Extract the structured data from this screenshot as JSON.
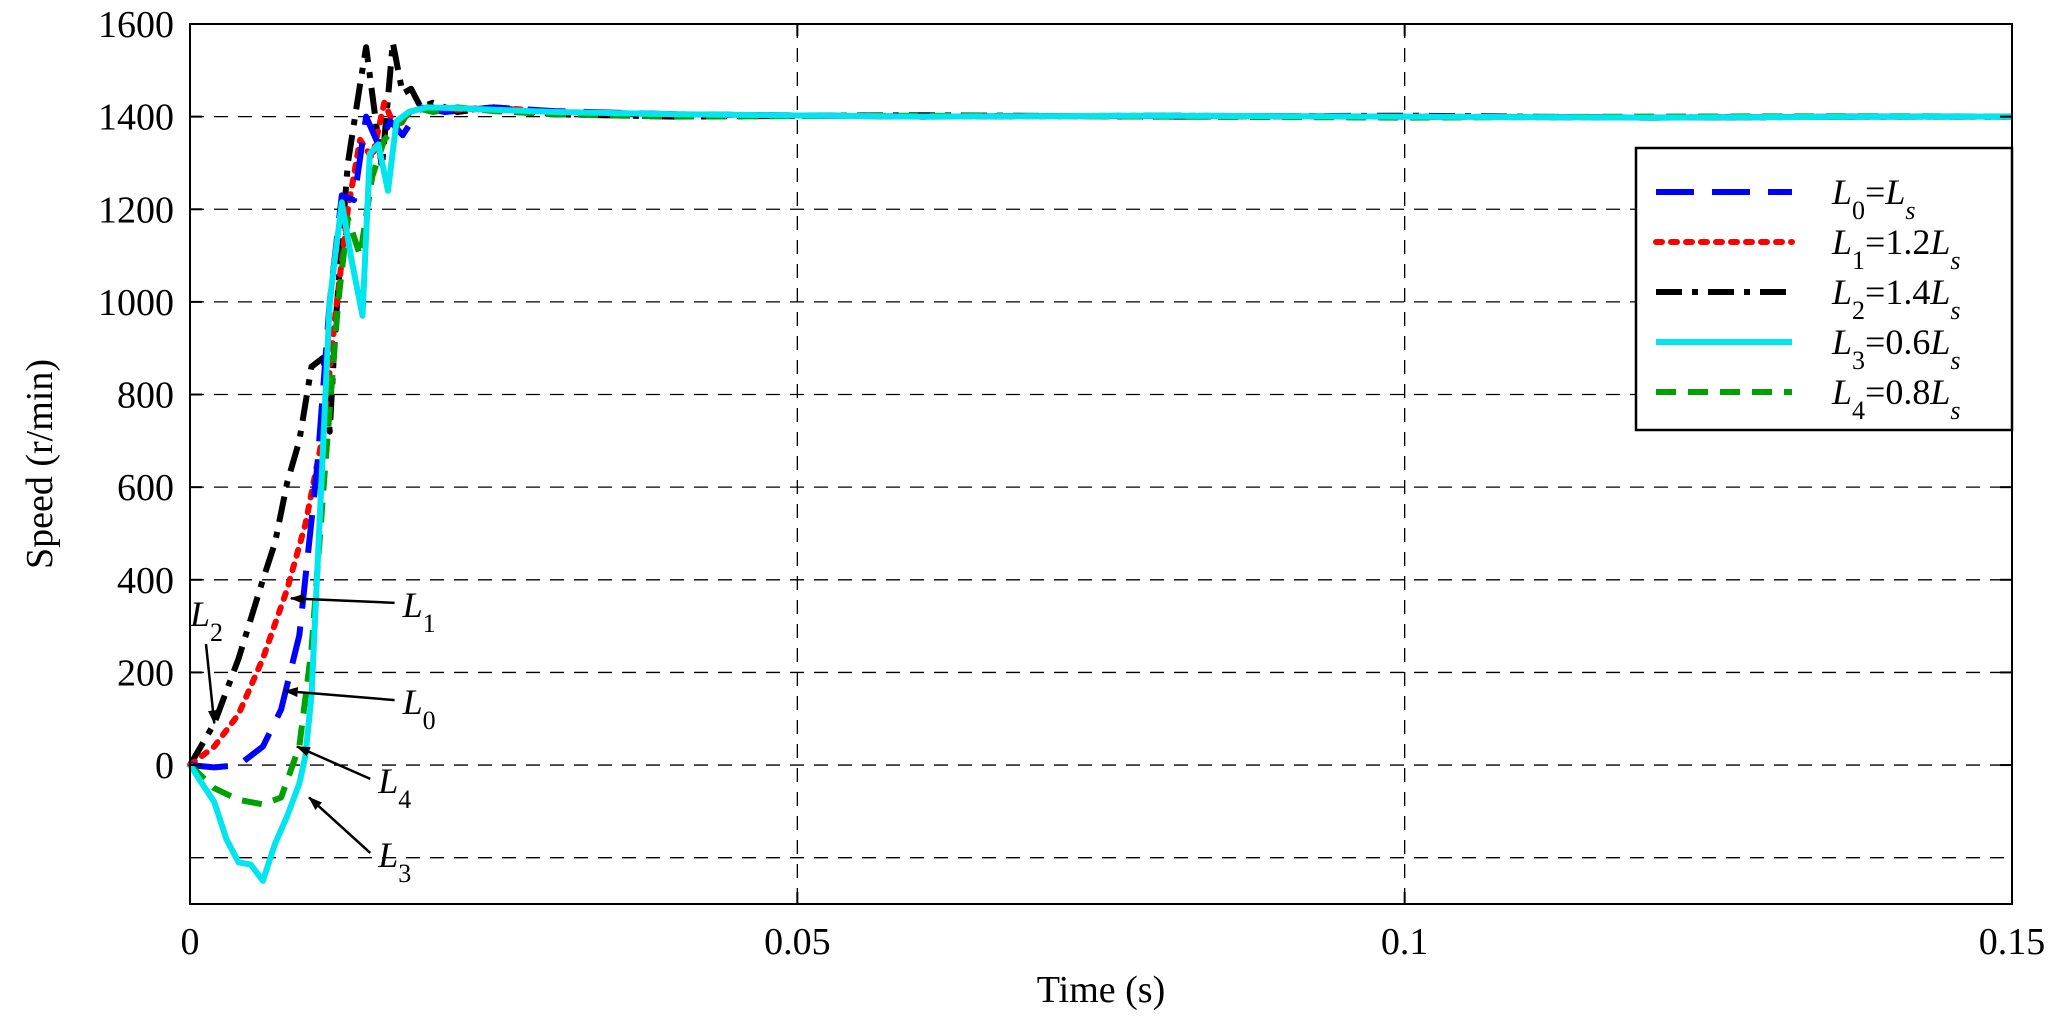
{
  "chart_data": {
    "type": "line",
    "title": "",
    "xlabel": "Time (s)",
    "ylabel": "Speed (r/min)",
    "xlim": [
      0,
      0.15
    ],
    "ylim": [
      -300,
      1600
    ],
    "xticks": [
      0,
      0.05,
      0.1,
      0.15
    ],
    "xtick_labels": [
      "0",
      "0.05",
      "0.1",
      "0.15"
    ],
    "yticks": [
      0,
      200,
      400,
      600,
      800,
      1000,
      1200,
      1400,
      1600
    ],
    "ytick_labels": [
      "0",
      "200",
      "400",
      "600",
      "800",
      "1000",
      "1200",
      "1400",
      "1600"
    ],
    "grid": true,
    "legend_position": "top-right",
    "series": [
      {
        "key": "L0",
        "legend": {
          "sym": "L",
          "sub": "0",
          "rest": "=",
          "sym2": "L",
          "sub2": "s"
        },
        "color": "#0000ff",
        "style": "long-dash",
        "x": [
          0,
          0.002,
          0.004,
          0.006,
          0.0075,
          0.009,
          0.0105,
          0.0115,
          0.0125,
          0.0135,
          0.0145,
          0.0155,
          0.0165,
          0.0175,
          0.019,
          0.021,
          0.025,
          0.03,
          0.04,
          0.06,
          0.08,
          0.1,
          0.12,
          0.14,
          0.15
        ],
        "y": [
          0,
          -5,
          0,
          40,
          120,
          280,
          650,
          1000,
          1230,
          1220,
          1400,
          1340,
          1390,
          1360,
          1420,
          1410,
          1420,
          1412,
          1405,
          1400,
          1402,
          1400,
          1398,
          1400,
          1400
        ]
      },
      {
        "key": "L1",
        "legend": {
          "sym": "L",
          "sub": "1",
          "rest": "=1.2",
          "sym2": "L",
          "sub2": "s"
        },
        "color": "#ff0000",
        "style": "dotted",
        "x": [
          0,
          0.002,
          0.004,
          0.006,
          0.008,
          0.0095,
          0.011,
          0.012,
          0.013,
          0.014,
          0.015,
          0.016,
          0.017,
          0.018,
          0.0195,
          0.022,
          0.025,
          0.03,
          0.04,
          0.06,
          0.08,
          0.1,
          0.12,
          0.14,
          0.15
        ],
        "y": [
          0,
          40,
          110,
          230,
          380,
          520,
          720,
          980,
          1200,
          1350,
          1310,
          1430,
          1370,
          1410,
          1420,
          1415,
          1420,
          1410,
          1405,
          1400,
          1402,
          1400,
          1398,
          1400,
          1400
        ]
      },
      {
        "key": "L2",
        "legend": {
          "sym": "L",
          "sub": "2",
          "rest": "=1.4",
          "sym2": "L",
          "sub2": "s"
        },
        "color": "#000000",
        "style": "dash-dot",
        "x": [
          0,
          0.002,
          0.004,
          0.006,
          0.007,
          0.008,
          0.009,
          0.01,
          0.011,
          0.0115,
          0.012,
          0.0125,
          0.013,
          0.014,
          0.0145,
          0.015,
          0.0158,
          0.0167,
          0.0175,
          0.0182,
          0.019,
          0.02,
          0.022,
          0.025,
          0.03,
          0.04,
          0.06,
          0.08,
          0.1,
          0.12,
          0.14,
          0.15
        ],
        "y": [
          0,
          90,
          230,
          400,
          480,
          610,
          700,
          860,
          880,
          720,
          960,
          1130,
          1300,
          1470,
          1550,
          1450,
          1290,
          1560,
          1450,
          1460,
          1420,
          1430,
          1410,
          1420,
          1405,
          1400,
          1403,
          1400,
          1402,
          1398,
          1400,
          1400
        ]
      },
      {
        "key": "L3",
        "legend": {
          "sym": "L",
          "sub": "3",
          "rest": "=0.6",
          "sym2": "L",
          "sub2": "s"
        },
        "color": "#00e5ee",
        "style": "solid",
        "x": [
          0,
          0.002,
          0.003,
          0.004,
          0.005,
          0.006,
          0.007,
          0.008,
          0.009,
          0.0095,
          0.01,
          0.0108,
          0.0115,
          0.0125,
          0.0133,
          0.0142,
          0.0148,
          0.0155,
          0.0163,
          0.017,
          0.018,
          0.0195,
          0.022,
          0.025,
          0.03,
          0.04,
          0.06,
          0.08,
          0.1,
          0.12,
          0.14,
          0.15
        ],
        "y": [
          0,
          -80,
          -160,
          -210,
          -215,
          -250,
          -170,
          -110,
          -40,
          20,
          150,
          600,
          1000,
          1215,
          1090,
          970,
          1320,
          1340,
          1240,
          1390,
          1410,
          1420,
          1418,
          1415,
          1410,
          1405,
          1400,
          1402,
          1400,
          1398,
          1400,
          1400
        ]
      },
      {
        "key": "L4",
        "legend": {
          "sym": "L",
          "sub": "4",
          "rest": "=0.8",
          "sym2": "L",
          "sub2": "s"
        },
        "color": "#00a000",
        "style": "dashed",
        "x": [
          0,
          0.002,
          0.004,
          0.006,
          0.0075,
          0.009,
          0.01,
          0.011,
          0.0122,
          0.013,
          0.014,
          0.015,
          0.016,
          0.017,
          0.0185,
          0.02,
          0.022,
          0.025,
          0.03,
          0.04,
          0.06,
          0.08,
          0.1,
          0.12,
          0.14,
          0.15
        ],
        "y": [
          0,
          -50,
          -75,
          -85,
          -70,
          40,
          250,
          600,
          1000,
          1180,
          1100,
          1270,
          1350,
          1380,
          1420,
          1410,
          1420,
          1412,
          1405,
          1400,
          1402,
          1400,
          1398,
          1400,
          1401,
          1400
        ]
      }
    ],
    "annotations": [
      {
        "sym": "L",
        "sub": "2",
        "x_text": 0.0,
        "y_text": 300,
        "x_arrow": 0.002,
        "y_arrow": 90
      },
      {
        "sym": "L",
        "sub": "1",
        "x_text": 0.0175,
        "y_text": 320,
        "x_arrow": 0.0083,
        "y_arrow": 360
      },
      {
        "sym": "L",
        "sub": "0",
        "x_text": 0.0175,
        "y_text": 110,
        "x_arrow": 0.0078,
        "y_arrow": 160
      },
      {
        "sym": "L",
        "sub": "4",
        "x_text": 0.0155,
        "y_text": -60,
        "x_arrow": 0.0088,
        "y_arrow": 40
      },
      {
        "sym": "L",
        "sub": "3",
        "x_text": 0.0155,
        "y_text": -220,
        "x_arrow": 0.0098,
        "y_arrow": -70
      }
    ]
  }
}
